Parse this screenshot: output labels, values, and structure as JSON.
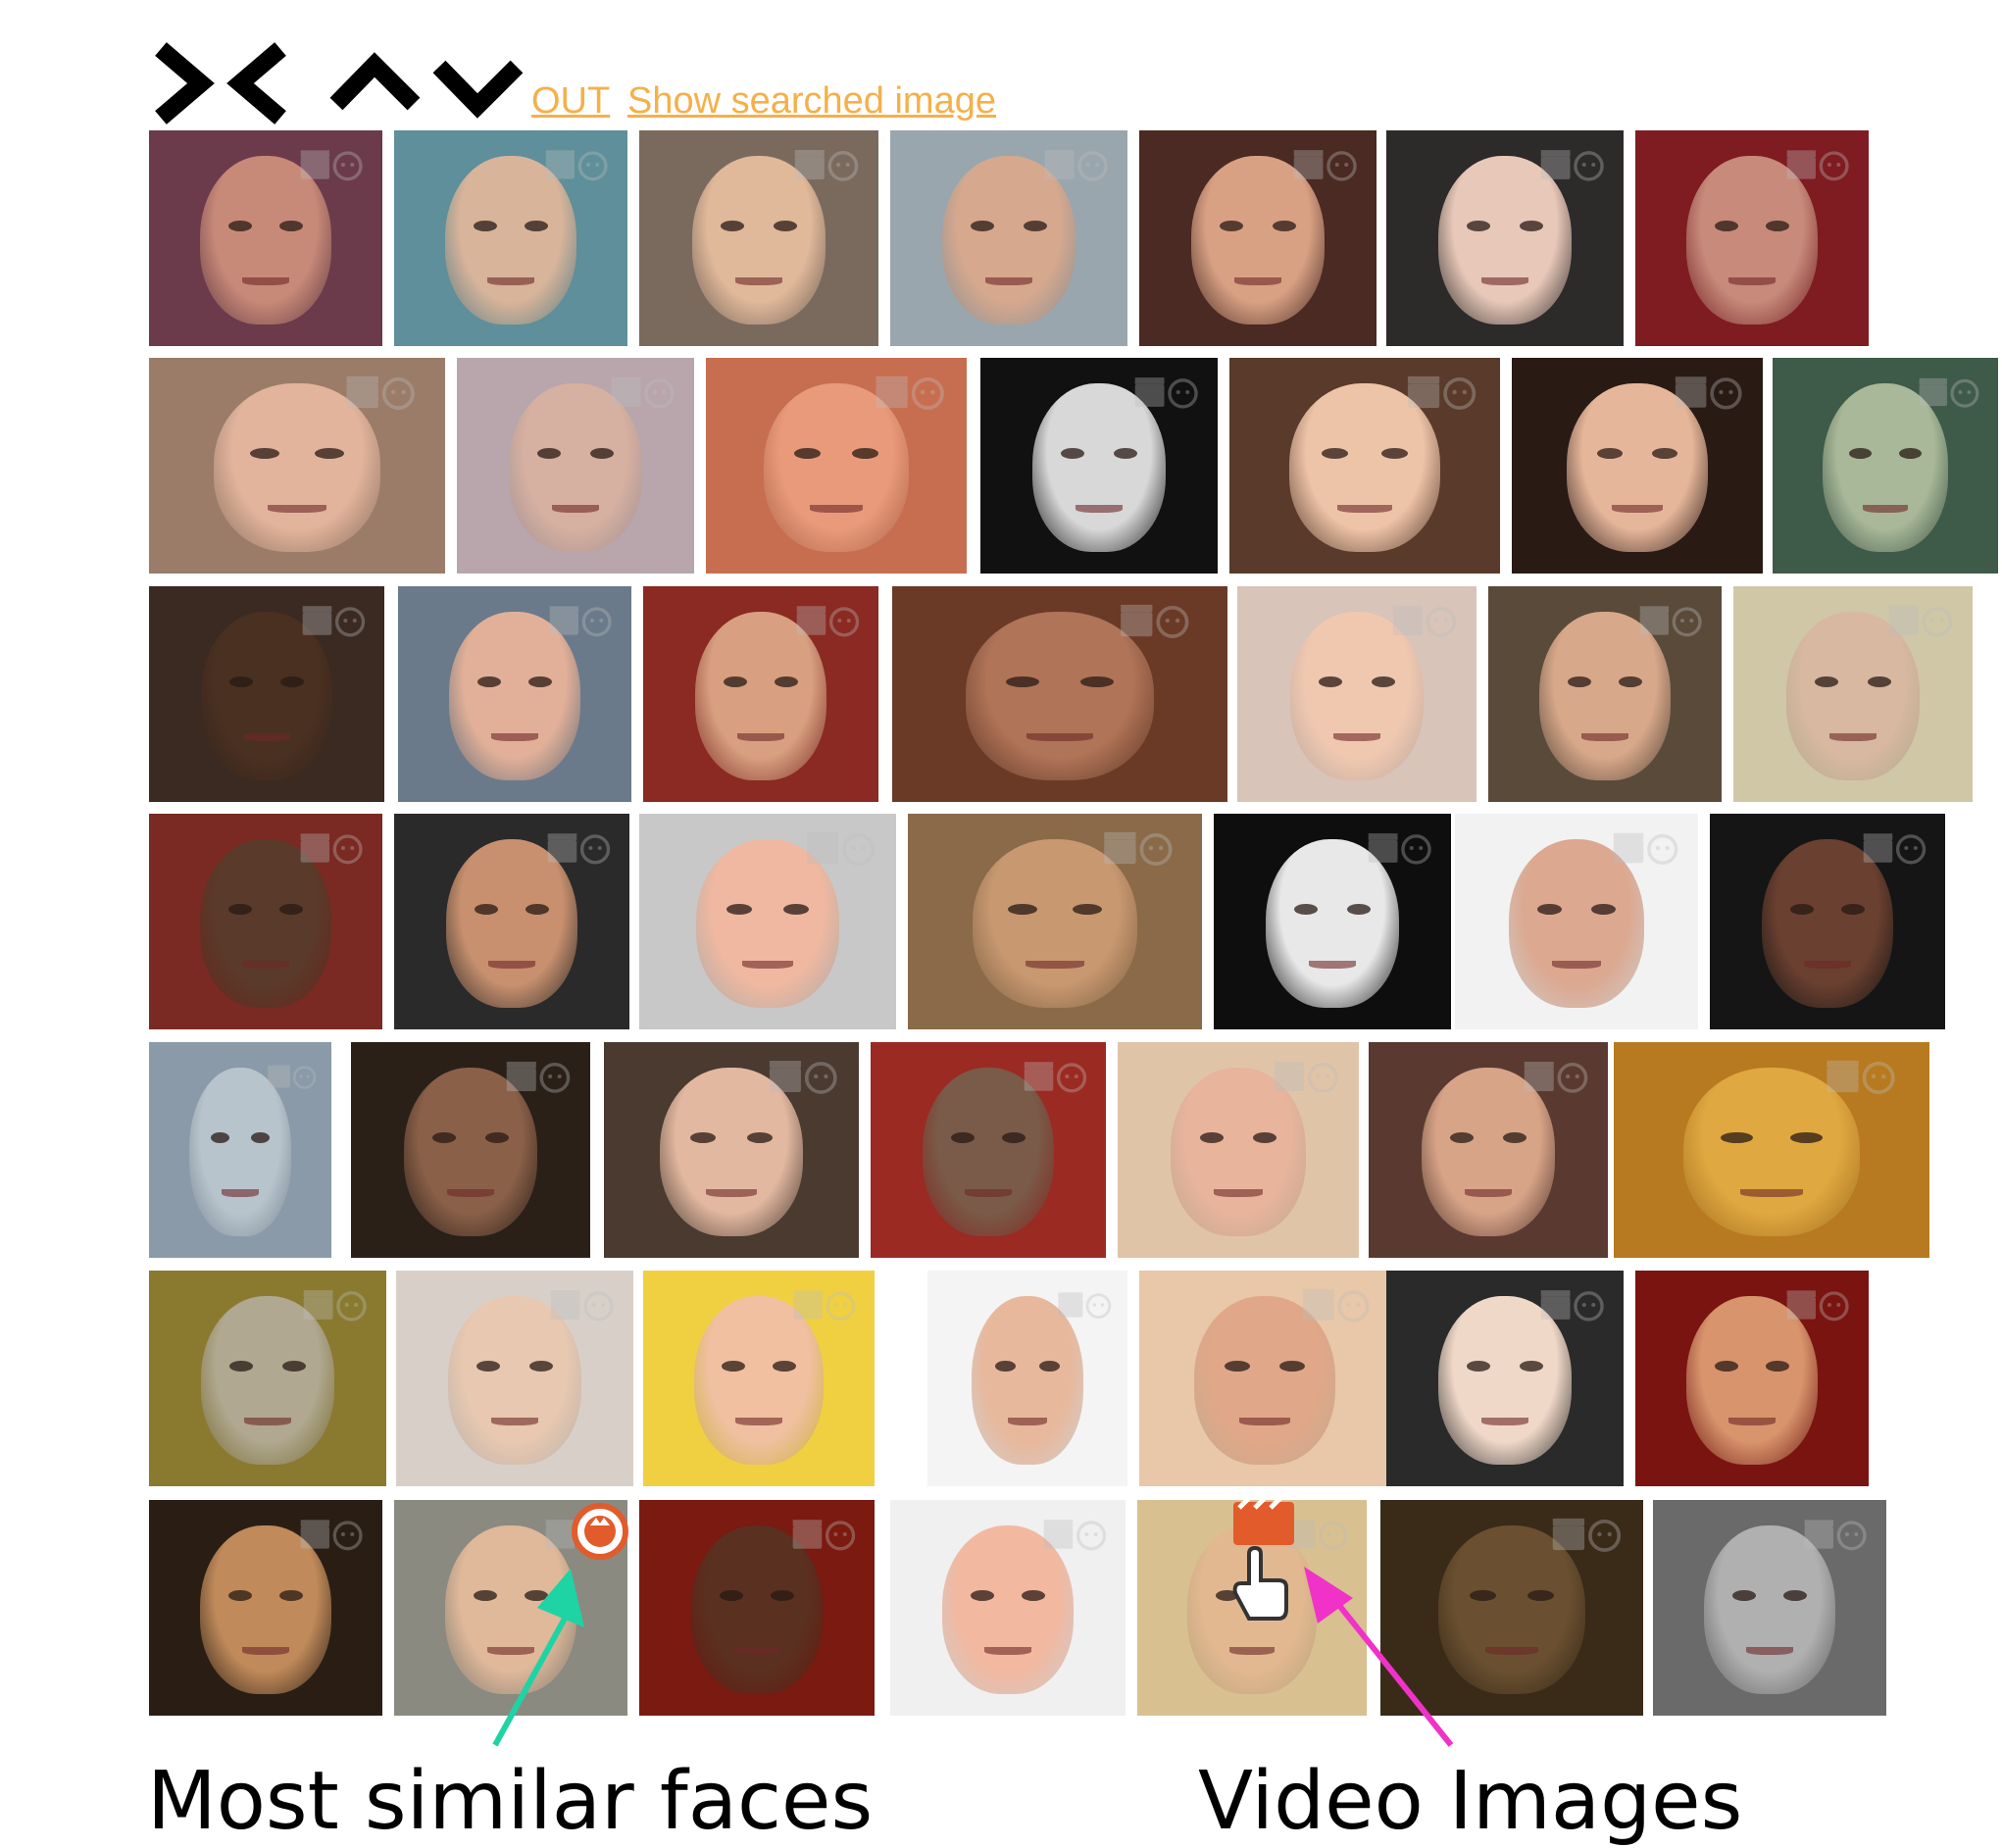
{
  "toolbar": {
    "out_link": "OUT",
    "show_searched_link": "Show searched image"
  },
  "colors": {
    "link": "#f5b04a",
    "similar_badge": "#e25b2b",
    "video_badge": "#e25b2b",
    "arrow_similar": "#1ed3a4",
    "arrow_video": "#f032c8"
  },
  "icons": {
    "nav": [
      "collapse-left-right-icon",
      "expand-up-icon",
      "expand-down-icon"
    ],
    "tile_watermark": [
      "clapperboard-icon",
      "face-icon"
    ],
    "badges": [
      "face-match-badge-icon",
      "video-clapper-badge-icon",
      "hand-pointer-icon"
    ]
  },
  "results": [
    [
      "face-man-glasses-beard",
      "face-surgeon-mask",
      "face-man-smiling",
      "face-man-smiling-2",
      "face-girl-eyes-closed",
      "face-woman-dark-hair",
      "face-man-asian-red"
    ],
    [
      "face-man-blond",
      "face-man-hood",
      "face-man-glasses-closeup",
      "face-woman-bw-grimace",
      "face-child",
      "face-woman-hand",
      "face-man-asian-green"
    ],
    [
      "face-man-smiling-dark",
      "face-man-laughing",
      "face-man-portrait",
      "face-man-bearded-closeup",
      "face-baby",
      "face-woman-headband",
      "face-man-asian-glasses"
    ],
    [
      "face-man-red-cap",
      "face-man-suit",
      "face-man-captain-hat",
      "face-woman-closeup",
      "face-horror-mask",
      "face-woman-profile",
      "face-woman-dark-skin"
    ],
    [
      "face-statue-grey",
      "face-couple-kiss",
      "face-young-man",
      "face-sloth",
      "face-woman-grimace",
      "face-woman-earrings",
      "face-golden-buddha"
    ],
    [
      "face-stone-statue",
      "face-old-man-beard",
      "face-young-man-cap",
      "face-woman-smiling",
      "face-woman-bindi",
      "face-doll",
      "face-man-hat"
    ],
    [
      "face-yorkshire-dog",
      "face-older-woman-glasses",
      "face-red-hair-render",
      "face-woman-smiling-2",
      "face-woman-braces",
      "face-painting-man",
      "face-old-man-bw"
    ]
  ],
  "annotations": {
    "similar_label": "Most similar faces",
    "video_label": "Video Images"
  }
}
